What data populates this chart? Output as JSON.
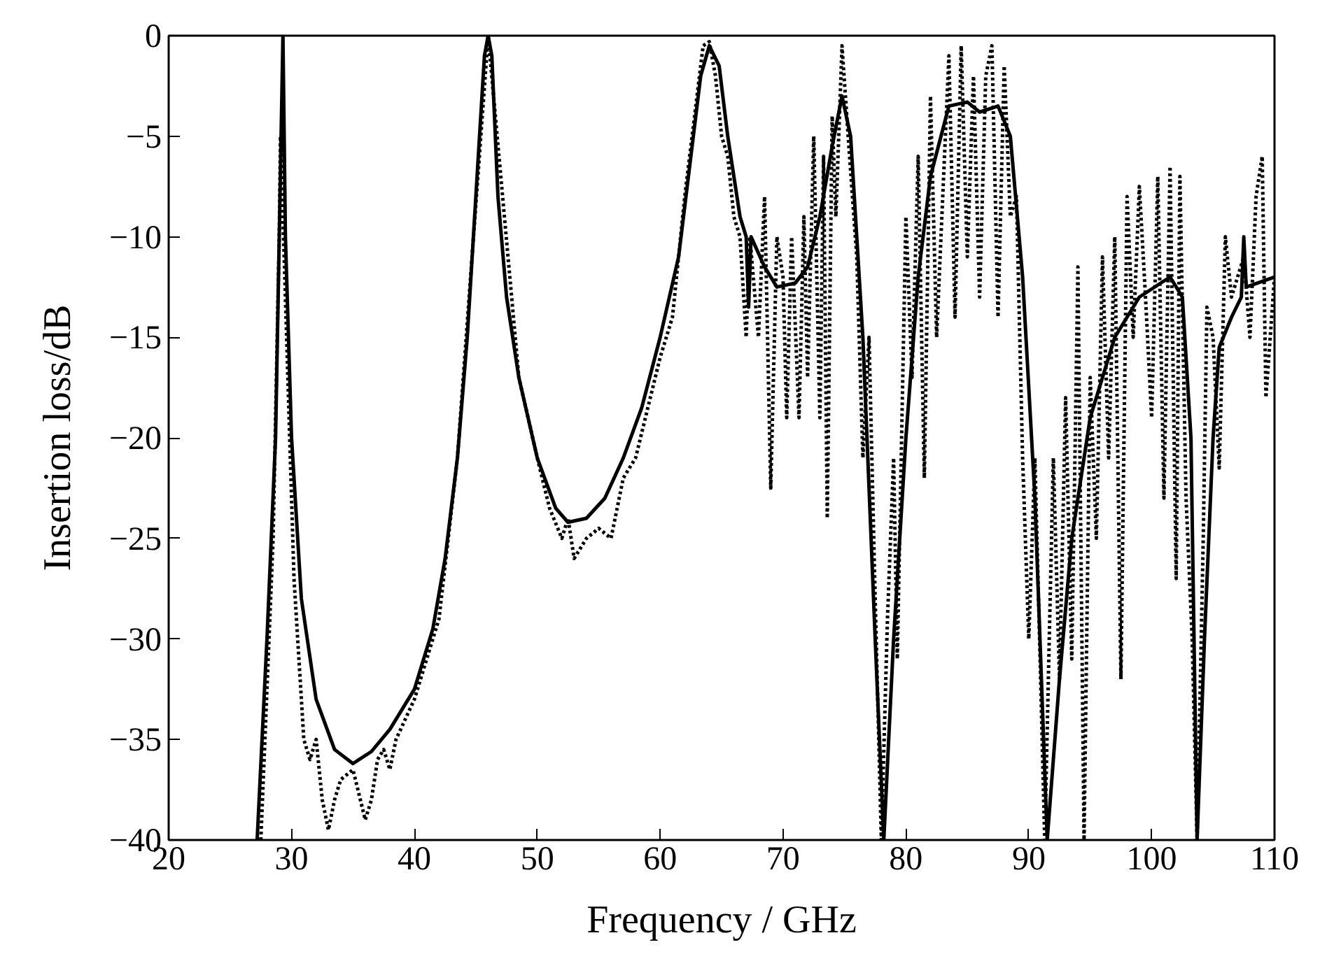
{
  "chart_data": {
    "type": "line",
    "xlabel": "Frequency / GHz",
    "ylabel": "Insertion loss/dB",
    "xlim": [
      20,
      110
    ],
    "ylim": [
      -40,
      0
    ],
    "xticks": [
      20,
      30,
      40,
      50,
      60,
      70,
      80,
      90,
      100,
      110
    ],
    "yticks": [
      -40,
      -35,
      -30,
      -25,
      -20,
      -15,
      -10,
      -5,
      0
    ],
    "grid": false,
    "series": [
      {
        "color": "#000000",
        "line_style": "solid",
        "x": [
          27.2,
          28,
          28.7,
          29.0,
          29.3,
          29.5,
          30,
          30.8,
          32,
          33.5,
          35,
          36.5,
          38,
          40,
          41.5,
          42.5,
          43.5,
          44.3,
          45,
          45.7,
          46,
          46.3,
          46.8,
          47.5,
          48.5,
          50,
          51.5,
          52.5,
          54,
          55.5,
          57,
          58.5,
          60,
          61.5,
          62.5,
          63.3,
          64,
          64.8,
          65.5,
          66.5,
          67,
          67.2,
          67.4,
          68.5,
          69.5,
          71,
          72,
          73,
          74,
          74.8,
          75.5,
          76.5,
          77.5,
          78.2,
          79,
          80,
          81,
          82,
          83.5,
          85,
          86,
          87.5,
          88.5,
          89.5,
          90.5,
          91.5,
          92.5,
          93.5,
          95,
          97,
          99,
          101.5,
          102.5,
          103.2,
          103.7,
          104.3,
          105,
          105.5,
          106.5,
          107.3,
          107.5,
          107.7,
          110
        ],
        "values": [
          -40,
          -30,
          -20,
          -10,
          0,
          -10,
          -20,
          -28,
          -33,
          -35.5,
          -36.2,
          -35.6,
          -34.5,
          -32.5,
          -29.5,
          -26,
          -21,
          -15,
          -8,
          -1,
          0,
          -1,
          -8,
          -13,
          -17,
          -21,
          -23.5,
          -24.2,
          -24,
          -23,
          -21,
          -18.5,
          -15,
          -11,
          -6,
          -2,
          -0.5,
          -1.5,
          -5,
          -9,
          -10,
          -13.5,
          -10,
          -11.5,
          -12.5,
          -12.3,
          -11.5,
          -9,
          -5.5,
          -3,
          -5,
          -15,
          -30,
          -40,
          -30,
          -20,
          -12,
          -7,
          -3.5,
          -3.3,
          -3.8,
          -3.5,
          -5,
          -12,
          -23,
          -40,
          -32,
          -25,
          -19,
          -15,
          -13,
          -12,
          -13,
          -20,
          -40,
          -30,
          -20,
          -15.5,
          -14,
          -13,
          -10,
          -12.5,
          -12
        ]
      },
      {
        "color": "#000000",
        "line_style": "dotted",
        "x": [
          27.5,
          28.5,
          29,
          29.1,
          29.6,
          30.2,
          31,
          31.5,
          32,
          32.5,
          33,
          33.5,
          34,
          35,
          36,
          36.5,
          37,
          37.5,
          38,
          38.5,
          40,
          42,
          43.5,
          46,
          48.5,
          50,
          51,
          52,
          52.5,
          53,
          54,
          55,
          56,
          57,
          58,
          59,
          60,
          61,
          62,
          63,
          63.5,
          64,
          64.5,
          65,
          65.5,
          66,
          66.5,
          67,
          67.3,
          68,
          68.5,
          69,
          69.5,
          70,
          70.3,
          70.7,
          71.3,
          71.7,
          72,
          72.5,
          73,
          73.3,
          73.6,
          74,
          74.3,
          74.8,
          75.3,
          76,
          76.5,
          77,
          77.5,
          78,
          78.5,
          79,
          79.3,
          80,
          80.5,
          81,
          81.5,
          82,
          82.5,
          83,
          83.5,
          84,
          84.5,
          85,
          85.5,
          86,
          86.5,
          87,
          87.5,
          88,
          88.5,
          89,
          89.5,
          90,
          90.5,
          91.3,
          92,
          92.5,
          93,
          93.5,
          94,
          94.5,
          95,
          95.5,
          96,
          96.5,
          97,
          97.5,
          98,
          98.5,
          99,
          99.5,
          100,
          100.5,
          101,
          101.5,
          102,
          102.3,
          102.8,
          103.3,
          103.7,
          104.2,
          104.5,
          105,
          105.5,
          106,
          106.5,
          107,
          107.5,
          108,
          108.5,
          109,
          109.3,
          110
        ],
        "values": [
          -40,
          -25,
          -10,
          -5,
          -15,
          -27,
          -35,
          -36,
          -35,
          -38,
          -39.5,
          -38,
          -37,
          -36.5,
          -39,
          -38,
          -36,
          -35.5,
          -36.5,
          -35,
          -33,
          -29,
          -21,
          0,
          -17,
          -21,
          -23.5,
          -25,
          -24,
          -26,
          -25,
          -24.5,
          -25,
          -22,
          -21,
          -18.5,
          -16,
          -14,
          -8,
          -3,
          -0.5,
          -0.3,
          -2,
          -5,
          -6,
          -9,
          -10,
          -15,
          -10,
          -15,
          -8,
          -22.5,
          -10,
          -12,
          -19,
          -10,
          -19,
          -9,
          -17,
          -5,
          -19,
          -6,
          -24,
          -4,
          -9,
          -0.5,
          -5,
          -11,
          -21,
          -15,
          -28,
          -40,
          -29,
          -21,
          -31,
          -9,
          -17,
          -6,
          -22,
          -3,
          -15,
          -8,
          -1,
          -14,
          -0.5,
          -11,
          -2,
          -13,
          -2,
          -0.5,
          -14,
          -1.5,
          -9,
          -8,
          -21,
          -30,
          -21,
          -40,
          -21,
          -32,
          -18,
          -31,
          -11.5,
          -40,
          -17,
          -25,
          -11,
          -21,
          -10,
          -32,
          -8,
          -15,
          -7.5,
          -13,
          -19,
          -7,
          -23,
          -6.5,
          -27,
          -7,
          -23,
          -30,
          -40,
          -25,
          -13.5,
          -15,
          -21.5,
          -10,
          -13,
          -12,
          -11,
          -15,
          -8,
          -6,
          -18,
          -12
        ]
      }
    ]
  }
}
